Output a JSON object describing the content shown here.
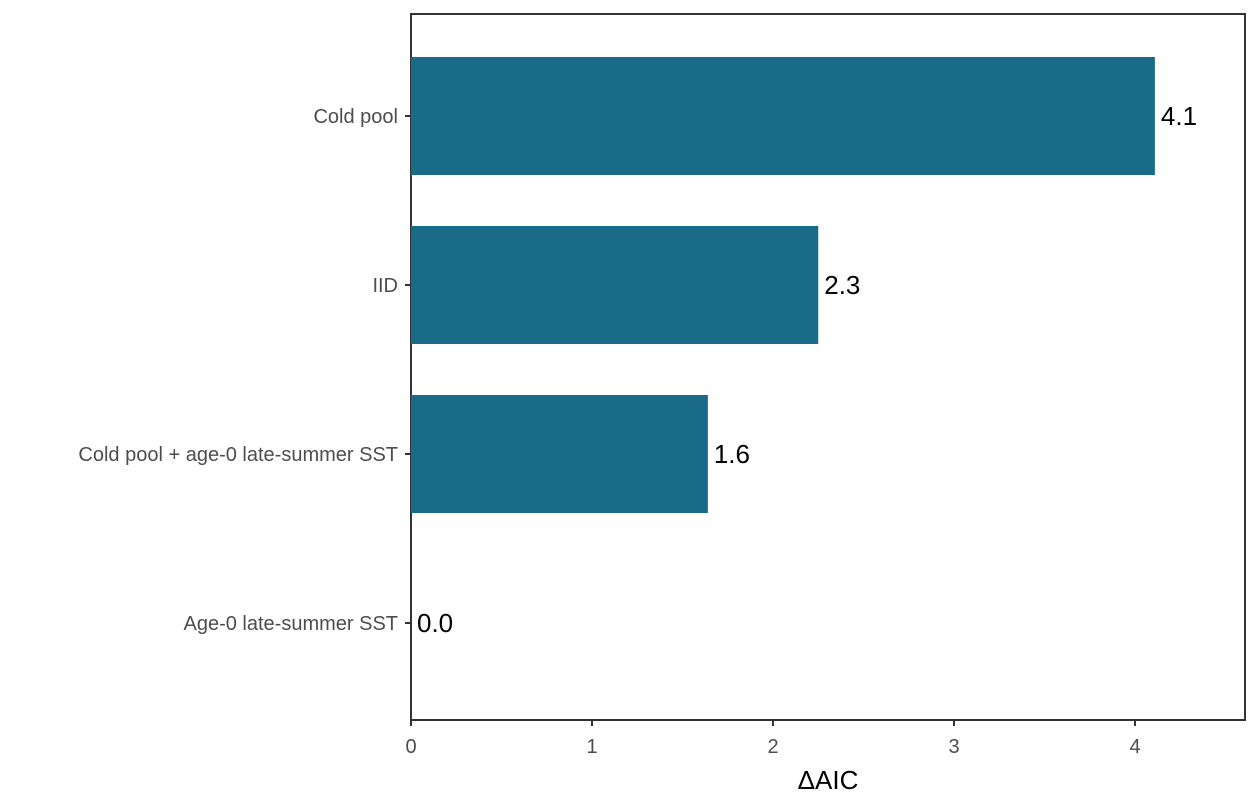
{
  "chart_data": {
    "type": "bar",
    "orientation": "horizontal",
    "categories": [
      "Cold pool",
      "IID",
      "Cold pool + age-0 late-summer SST",
      "Age-0 late-summer SST"
    ],
    "values": [
      4.11,
      2.25,
      1.64,
      0.0
    ],
    "value_labels": [
      "4.1",
      "2.3",
      "1.6",
      "0.0"
    ],
    "xlabel": "ΔAIC",
    "ylabel": "",
    "xlim": [
      0,
      4.6
    ],
    "xticks": [
      0,
      1,
      2,
      3,
      4
    ],
    "xtick_labels": [
      "0",
      "1",
      "2",
      "3",
      "4"
    ],
    "bar_color": "#1a6b87",
    "grid": false,
    "legend": "none"
  }
}
